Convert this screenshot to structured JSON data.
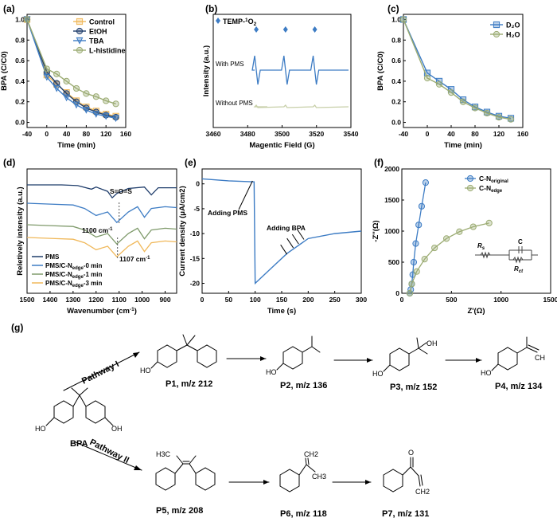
{
  "panels": {
    "a": {
      "letter": "(a)"
    },
    "b": {
      "letter": "(b)"
    },
    "c": {
      "letter": "(c)"
    },
    "d": {
      "letter": "(d)"
    },
    "e": {
      "letter": "(e)"
    },
    "f": {
      "letter": "(f)"
    },
    "g": {
      "letter": "(g)"
    }
  },
  "chart_data": [
    {
      "id": "a",
      "type": "line",
      "xlabel": "Time (min)",
      "ylabel": "BPA (C/C0)",
      "xlim": [
        -40,
        160
      ],
      "ylim": [
        -0.05,
        1.05
      ],
      "xticks": [
        -40,
        0,
        40,
        80,
        120,
        160
      ],
      "yticks": [
        0.0,
        0.2,
        0.4,
        0.6,
        0.8,
        1.0
      ],
      "legend_position": "top-right",
      "series": [
        {
          "name": "Control",
          "color": "#f0b85a",
          "marker": "square",
          "x": [
            -40,
            0,
            20,
            40,
            60,
            80,
            100,
            120,
            140
          ],
          "y": [
            1.0,
            0.46,
            0.37,
            0.29,
            0.21,
            0.15,
            0.11,
            0.08,
            0.06
          ]
        },
        {
          "name": "EtOH",
          "color": "#1f3d6b",
          "marker": "circle",
          "x": [
            -40,
            0,
            20,
            40,
            60,
            80,
            100,
            120,
            140
          ],
          "y": [
            1.0,
            0.49,
            0.38,
            0.28,
            0.2,
            0.14,
            0.1,
            0.07,
            0.05
          ]
        },
        {
          "name": "TBA",
          "color": "#3d7cc4",
          "marker": "triangle-down",
          "x": [
            -40,
            0,
            20,
            40,
            60,
            80,
            100,
            120,
            140
          ],
          "y": [
            1.0,
            0.44,
            0.33,
            0.24,
            0.17,
            0.12,
            0.08,
            0.06,
            0.04
          ]
        },
        {
          "name": "L-histidine",
          "color": "#9bab72",
          "marker": "circle",
          "x": [
            -40,
            0,
            20,
            40,
            60,
            80,
            100,
            120,
            140
          ],
          "y": [
            1.0,
            0.52,
            0.47,
            0.4,
            0.33,
            0.28,
            0.25,
            0.21,
            0.18
          ]
        }
      ]
    },
    {
      "id": "b",
      "type": "line",
      "xlabel": "Magentic Field (G)",
      "ylabel": "Intensity (a.u.)",
      "xlim": [
        3460,
        3540
      ],
      "xticks": [
        3460,
        3480,
        3500,
        3520,
        3540
      ],
      "legend": "TEMP-1O2",
      "legend_color": "#3d7cc4",
      "series": [
        {
          "name": "With PMS",
          "color": "#3d7cc4",
          "peaks_x": [
            3485,
            3502,
            3519
          ]
        },
        {
          "name": "Without PMS",
          "color": "#c7cfa8"
        }
      ]
    },
    {
      "id": "c",
      "type": "line",
      "xlabel": "Time (min)",
      "ylabel": "BPA (C/C0)",
      "xlim": [
        -40,
        160
      ],
      "ylim": [
        -0.05,
        1.05
      ],
      "xticks": [
        -40,
        0,
        40,
        80,
        120,
        160
      ],
      "yticks": [
        0.0,
        0.2,
        0.4,
        0.6,
        0.8,
        1.0
      ],
      "legend_position": "top-right",
      "series": [
        {
          "name": "D2O",
          "color": "#3d7cc4",
          "marker": "square",
          "x": [
            -40,
            0,
            20,
            40,
            60,
            80,
            100,
            120,
            140
          ],
          "y": [
            1.0,
            0.48,
            0.4,
            0.32,
            0.22,
            0.15,
            0.1,
            0.06,
            0.04
          ]
        },
        {
          "name": "H2O",
          "color": "#9bab72",
          "marker": "circle",
          "x": [
            -40,
            0,
            20,
            40,
            60,
            80,
            100,
            120,
            140
          ],
          "y": [
            1.0,
            0.43,
            0.37,
            0.29,
            0.2,
            0.14,
            0.09,
            0.05,
            0.03
          ]
        }
      ]
    },
    {
      "id": "d",
      "type": "line",
      "xlabel": "Wavenumber (cm-1)",
      "ylabel": "Reletively intensity (a.u.)",
      "xlim": [
        1500,
        850
      ],
      "xticks": [
        1500,
        1400,
        1300,
        1200,
        1100,
        1000,
        900
      ],
      "annotations": [
        "S=O=S",
        "1100 cm-1",
        "1107 cm-1"
      ],
      "series": [
        {
          "name": "PMS",
          "color": "#1f3d6b"
        },
        {
          "name": "PMS/C-Nedge-0 min",
          "color": "#3d7cc4"
        },
        {
          "name": "PMS/C-Nedge-1 min",
          "color": "#7f9a6b"
        },
        {
          "name": "PMS/C-Nedge-3 min",
          "color": "#f0b85a"
        }
      ]
    },
    {
      "id": "e",
      "type": "line",
      "xlabel": "Time (s)",
      "ylabel": "Current density (μA/cm2)",
      "xlim": [
        0,
        300
      ],
      "ylim": [
        -22,
        3
      ],
      "xticks": [
        0,
        50,
        100,
        150,
        200,
        250,
        300
      ],
      "yticks": [
        -20,
        -15,
        -10,
        -5,
        0
      ],
      "annotations": [
        "Adding PMS",
        "Adding BPA"
      ],
      "series": [
        {
          "name": "",
          "color": "#3d7cc4",
          "x": [
            0,
            50,
            98,
            100,
            130,
            160,
            200,
            250,
            300
          ],
          "y": [
            1.0,
            0.6,
            0.4,
            -20,
            -17,
            -14,
            -11,
            -10,
            -9.5
          ]
        }
      ]
    },
    {
      "id": "f",
      "type": "scatter",
      "xlabel": "Z'(Ω)",
      "ylabel": "-Z''(Ω)",
      "xlim": [
        0,
        1500
      ],
      "ylim": [
        0,
        2000
      ],
      "xticks": [
        0,
        500,
        1000,
        1500
      ],
      "yticks": [
        0,
        500,
        1000,
        1500,
        2000
      ],
      "circuit_labels": [
        "Rs",
        "C",
        "Rct"
      ],
      "series": [
        {
          "name": "C-Noriginal",
          "color": "#3d7cc4",
          "x": [
            80,
            90,
            100,
            110,
            120,
            140,
            170,
            200,
            240
          ],
          "y": [
            0,
            60,
            150,
            300,
            500,
            800,
            1100,
            1400,
            1780
          ]
        },
        {
          "name": "C-Nedge",
          "color": "#9bab72",
          "x": [
            80,
            100,
            150,
            230,
            330,
            450,
            580,
            720,
            880
          ],
          "y": [
            0,
            150,
            350,
            550,
            730,
            880,
            990,
            1070,
            1130
          ]
        }
      ]
    }
  ],
  "scheme": {
    "labels": {
      "bpa": "BPA",
      "pathway1": "Pathway I",
      "pathway2": "Pathway II",
      "p1": "P1, m/z 212",
      "p2": "P2, m/z 136",
      "p3": "P3, m/z 152",
      "p4": "P4, m/z 134",
      "p5": "P5, m/z 208",
      "p6": "P6, m/z 118",
      "p7": "P7, m/z 131"
    }
  }
}
